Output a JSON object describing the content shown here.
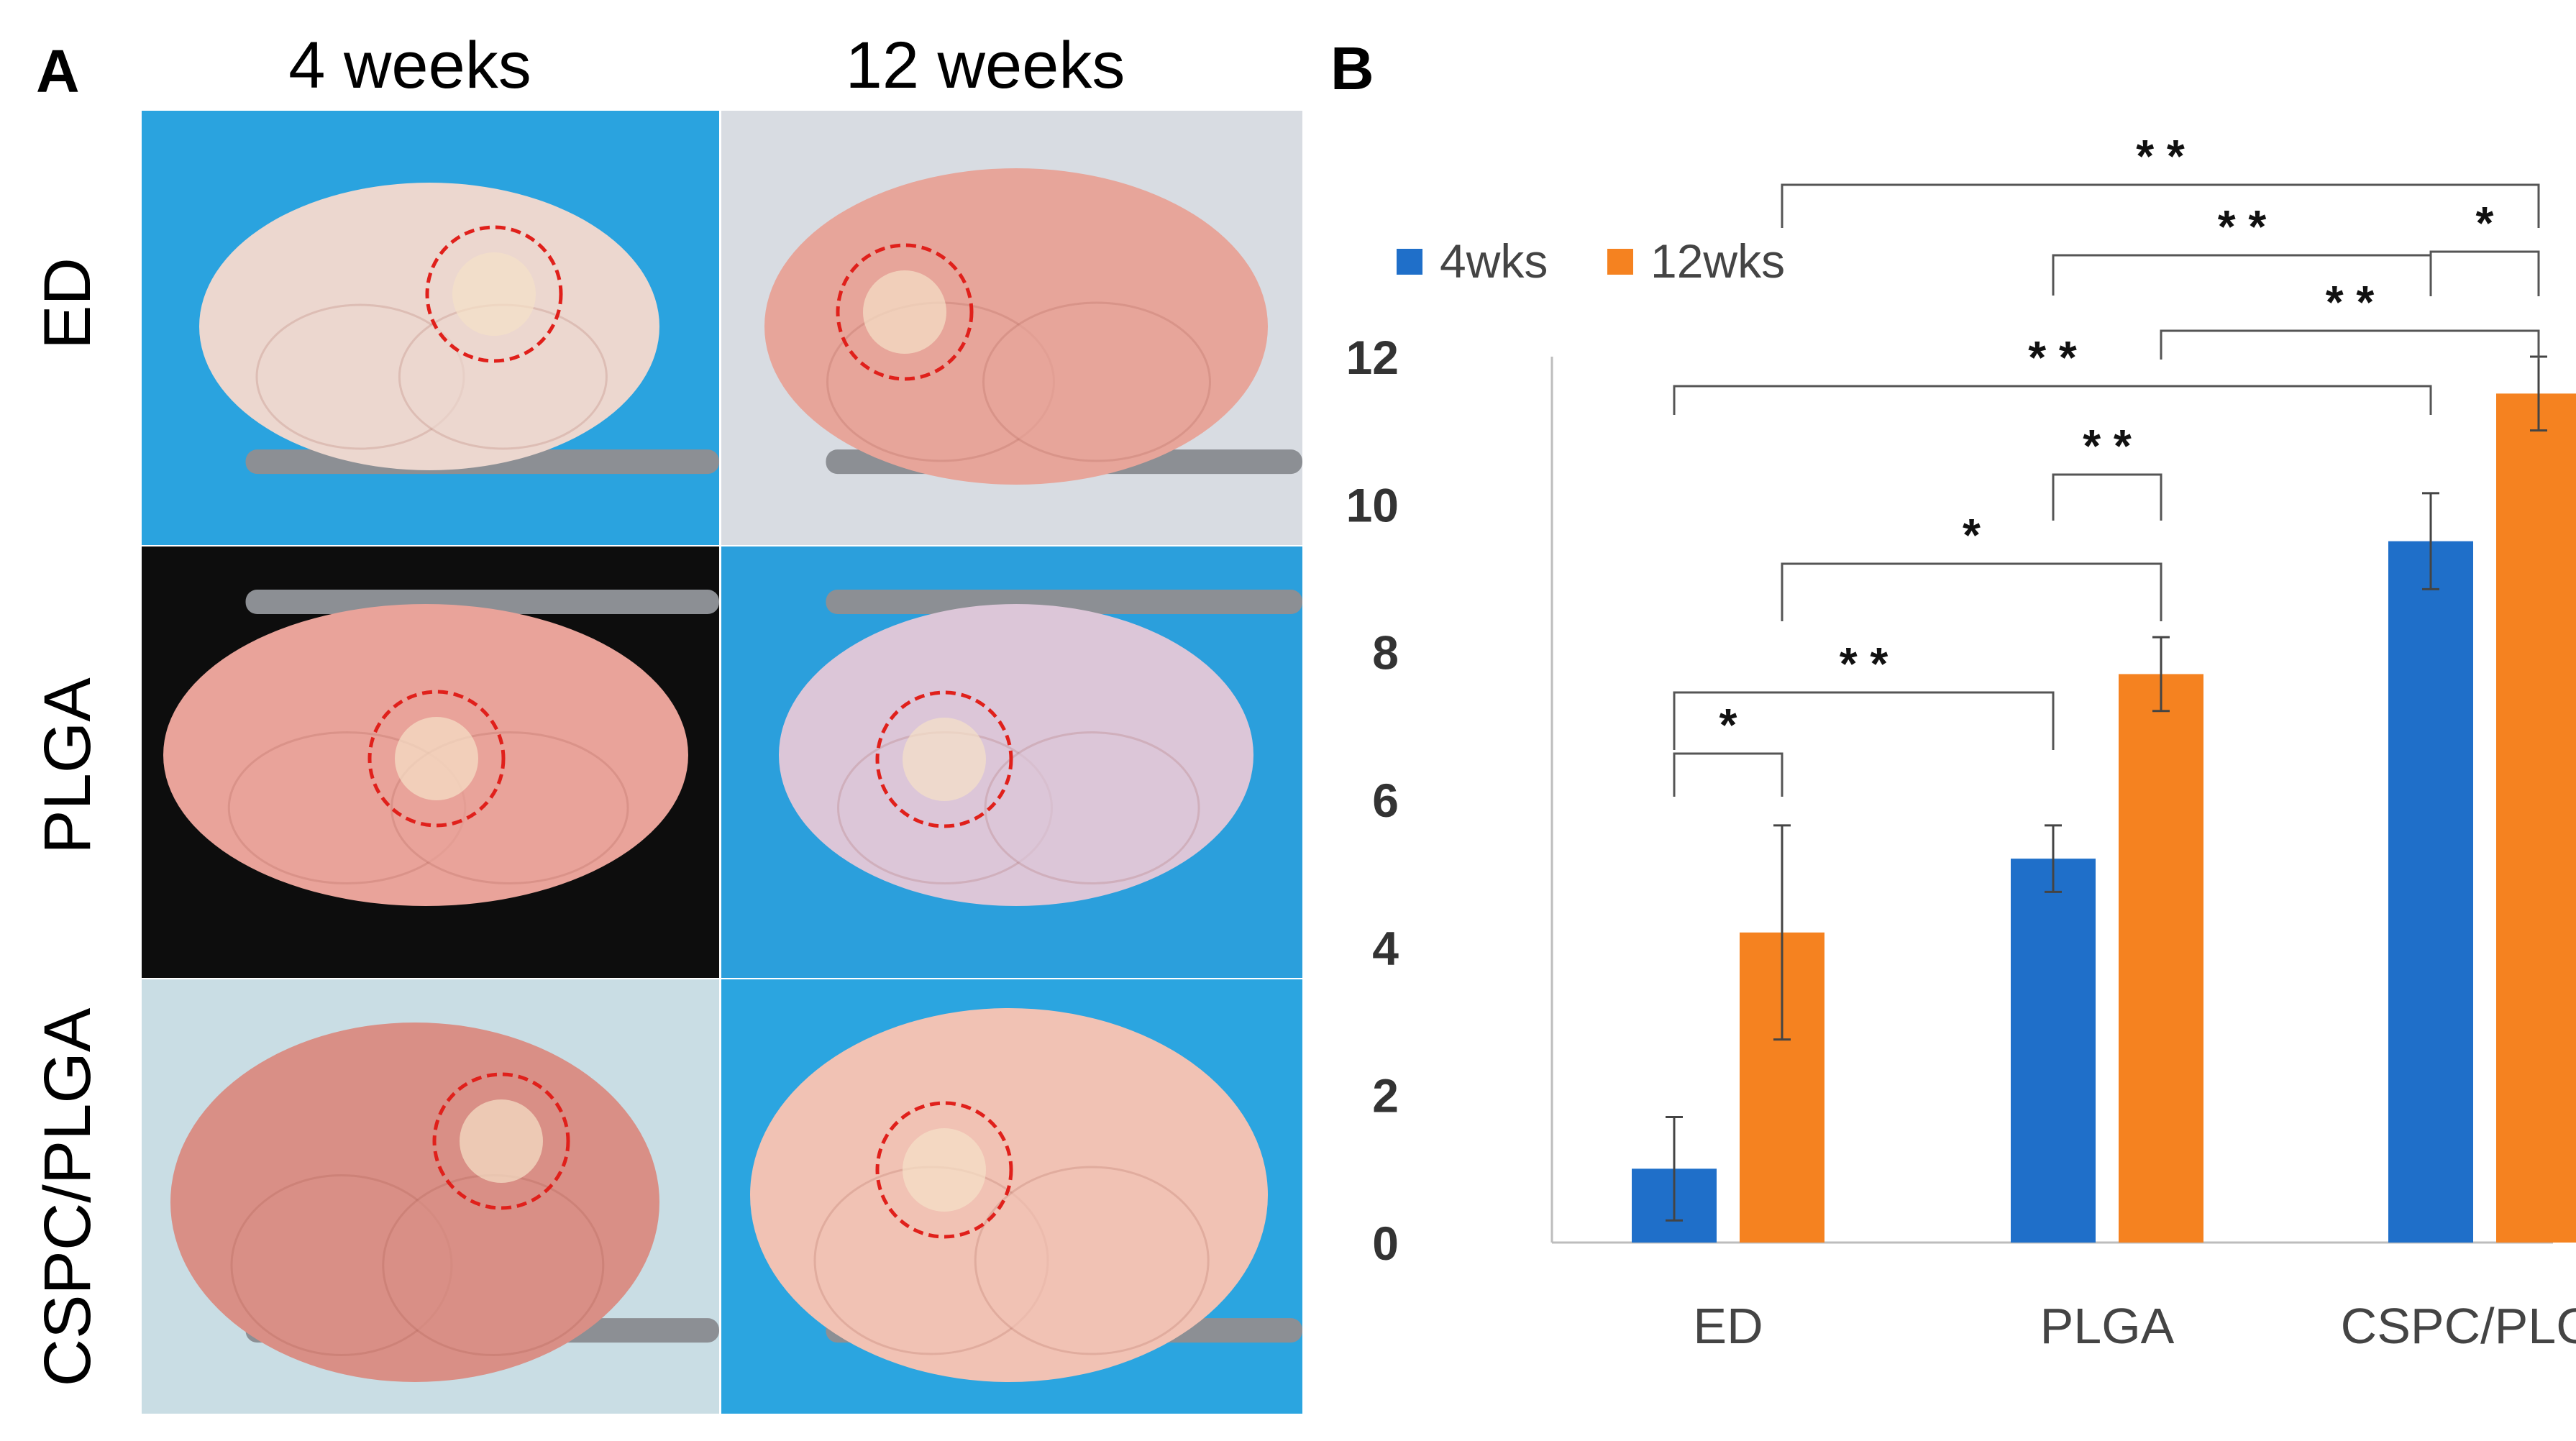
{
  "panel_a": {
    "label": "A",
    "columns": [
      "4 weeks",
      "12 weeks"
    ],
    "rows": [
      "ED",
      "PLGA",
      "CSPC/PLGA"
    ],
    "photos": [
      {
        "row": "ED",
        "col": "4 weeks",
        "background": "#2aa3df",
        "tissue": "#ecd7cf"
      },
      {
        "row": "ED",
        "col": "12 weeks",
        "background": "#d8dce2",
        "tissue": "#e7a59a"
      },
      {
        "row": "PLGA",
        "col": "4 weeks",
        "background": "#0d0d0d",
        "tissue": "#e9a39a"
      },
      {
        "row": "PLGA",
        "col": "12 weeks",
        "background": "#2b9fdc",
        "tissue": "#dcc6d8"
      },
      {
        "row": "CSPC/PLGA",
        "col": "4 weeks",
        "background": "#c9dde4",
        "tissue": "#d98f86"
      },
      {
        "row": "CSPC/PLGA",
        "col": "12 weeks",
        "background": "#2ba5e0",
        "tissue": "#f1c2b4"
      }
    ],
    "circle_color": "#e0201b"
  },
  "panel_b": {
    "label": "B"
  },
  "chart_data": {
    "type": "bar",
    "categories": [
      "ED",
      "PLGA",
      "CSPC/PLGA"
    ],
    "series": [
      {
        "name": "4wks",
        "color": "#1f6fc9",
        "values": [
          1.0,
          5.2,
          9.5
        ],
        "errors": [
          0.7,
          0.45,
          0.65
        ]
      },
      {
        "name": "12wks",
        "color": "#f58220",
        "values": [
          4.2,
          7.7,
          11.5
        ],
        "errors": [
          1.45,
          0.5,
          0.5
        ]
      }
    ],
    "ylim": [
      0,
      12
    ],
    "yticks": [
      "0",
      "2",
      "4",
      "6",
      "8",
      "10",
      "12"
    ],
    "legend_position": "top-left",
    "grid": false,
    "significance": [
      {
        "from": "ED/4wks",
        "to": "ED/12wks",
        "label": "*"
      },
      {
        "from": "ED/4wks",
        "to": "PLGA/4wks",
        "label": "* *"
      },
      {
        "from": "ED/12wks",
        "to": "PLGA/12wks",
        "label": "*"
      },
      {
        "from": "PLGA/4wks",
        "to": "PLGA/12wks",
        "label": "* *"
      },
      {
        "from": "ED/4wks",
        "to": "CSPC/PLGA/4wks",
        "label": "* *"
      },
      {
        "from": "PLGA/12wks",
        "to": "CSPC/PLGA/12wks",
        "label": "* *"
      },
      {
        "from": "PLGA/4wks",
        "to": "CSPC/PLGA/4wks",
        "label": "* *"
      },
      {
        "from": "CSPC/PLGA/4wks",
        "to": "CSPC/PLGA/12wks",
        "label": "*"
      },
      {
        "from": "ED/12wks",
        "to": "CSPC/PLGA/12wks",
        "label": "* *"
      }
    ]
  }
}
